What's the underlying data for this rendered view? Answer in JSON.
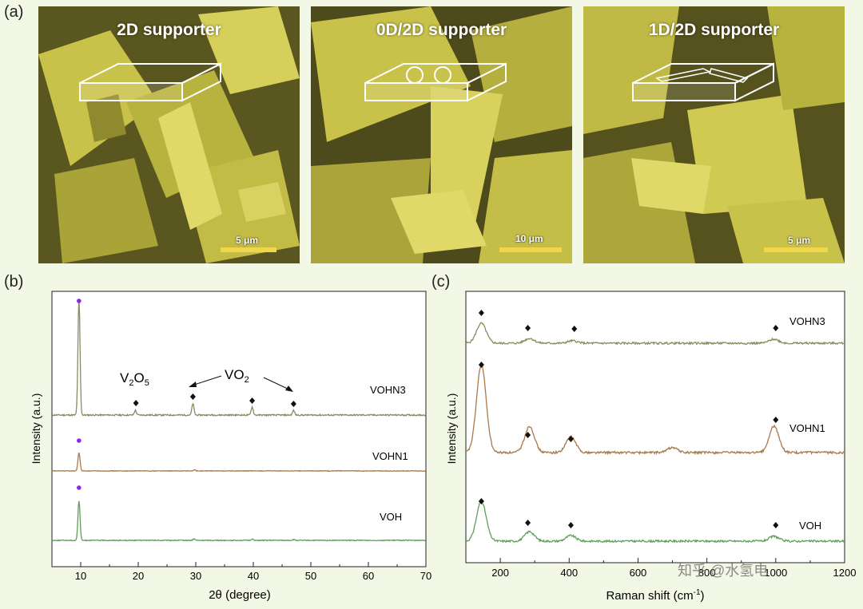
{
  "panel_labels": {
    "a": "(a)",
    "b": "(b)",
    "c": "(c)"
  },
  "sem_panels": [
    {
      "title": "2D supporter",
      "scale_label": "5 μm"
    },
    {
      "title": "0D/2D supporter",
      "scale_label": "10 μm"
    },
    {
      "title": "1D/2D supporter",
      "scale_label": "5 μm"
    }
  ],
  "watermark": "知乎 @水氢电",
  "colors": {
    "voh": "#5e9e5a",
    "vohn1": "#a87a4a",
    "vohn3": "#7f8f60",
    "marker_dot": "#8a2be2",
    "sem_tint": "#c9c24a"
  },
  "chart_data": [
    {
      "type": "line",
      "title": "(b)",
      "xlabel": "2θ (degree)",
      "ylabel": "Intensity (a.u.)",
      "xlim": [
        5,
        70
      ],
      "xticks": [
        10,
        20,
        30,
        40,
        50,
        60,
        70
      ],
      "series": [
        {
          "name": "VOHN3",
          "peaks": [
            [
              9.7,
              1.0
            ],
            [
              19.5,
              0.04
            ],
            [
              29.5,
              0.1
            ],
            [
              39.8,
              0.07
            ],
            [
              47.0,
              0.04
            ]
          ]
        },
        {
          "name": "VOHN1",
          "peaks": [
            [
              9.7,
              0.38
            ],
            [
              29.8,
              0.02
            ]
          ]
        },
        {
          "name": "VOH",
          "peaks": [
            [
              9.7,
              0.55
            ],
            [
              29.7,
              0.02
            ],
            [
              39.8,
              0.02
            ],
            [
              47.0,
              0.01
            ]
          ]
        }
      ],
      "annotations": {
        "v2o5": {
          "base": "V",
          "sub1": "2",
          "mid": "O",
          "sub2": "5"
        },
        "vo2": {
          "base": "VO",
          "sub": "2"
        }
      },
      "markers": {
        "dot_at": 9.7,
        "diamonds_vohn3": [
          19.6,
          29.5,
          39.8,
          47.0
        ]
      }
    },
    {
      "type": "line",
      "title": "(c)",
      "xlabel": "Raman shift (cm-1)",
      "xlabel_parts": {
        "base": "Raman shift (cm",
        "sup": "-1",
        "close": ")"
      },
      "ylabel": "Intensity (a.u.)",
      "xlim": [
        100,
        1200
      ],
      "xticks": [
        200,
        400,
        600,
        800,
        1000,
        1200
      ],
      "xtick_labels": [
        "200",
        "400",
        "600",
        "800",
        "1000",
        "1200"
      ],
      "series": [
        {
          "name": "VOHN3",
          "peaks": [
            [
              145,
              0.25
            ],
            [
              285,
              0.06
            ],
            [
              410,
              0.03
            ],
            [
              995,
              0.05
            ]
          ]
        },
        {
          "name": "VOHN1",
          "peaks": [
            [
              145,
              1.0
            ],
            [
              285,
              0.3
            ],
            [
              405,
              0.18
            ],
            [
              700,
              0.06
            ],
            [
              995,
              0.3
            ]
          ]
        },
        {
          "name": "VOH",
          "peaks": [
            [
              145,
              0.5
            ],
            [
              285,
              0.12
            ],
            [
              405,
              0.07
            ],
            [
              995,
              0.06
            ]
          ]
        }
      ],
      "markers": {
        "vohn3": [
          145,
          280,
          415,
          1000
        ],
        "vohn1": [
          145,
          280,
          405,
          1000
        ],
        "voh": [
          145,
          280,
          405,
          1000
        ]
      }
    }
  ]
}
